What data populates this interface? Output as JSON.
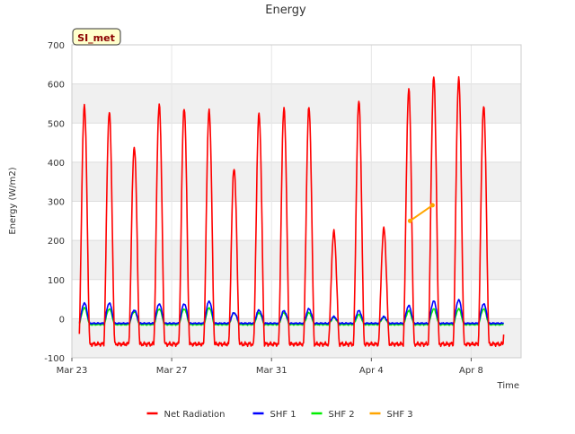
{
  "chart_data": {
    "type": "line",
    "title": "Energy",
    "xlabel": "Time",
    "ylabel": "Energy (W/m2)",
    "ylim": [
      -100,
      700
    ],
    "xlim_days": [
      0,
      18
    ],
    "yticks": [
      -100,
      0,
      100,
      200,
      300,
      400,
      500,
      600,
      700
    ],
    "xticks": [
      {
        "day": 0,
        "label": "Mar 23"
      },
      {
        "day": 4,
        "label": "Mar 27"
      },
      {
        "day": 8,
        "label": "Mar 31"
      },
      {
        "day": 12,
        "label": "Apr 4"
      },
      {
        "day": 16,
        "label": "Apr 8"
      }
    ],
    "grid": true,
    "background_bands": true,
    "site_label": "SI_met",
    "legend_position": "bottom-center",
    "series": [
      {
        "name": "Net Radiation",
        "color": "#ff0000",
        "kind": "diurnal",
        "night": -65,
        "peaks": [
          545,
          530,
          440,
          550,
          540,
          535,
          385,
          525,
          538,
          540,
          222,
          555,
          230,
          585,
          618,
          615,
          545
        ]
      },
      {
        "name": "SHF 1",
        "color": "#0000ff",
        "kind": "diurnal",
        "night": -12,
        "peaks": [
          40,
          40,
          22,
          38,
          38,
          45,
          15,
          22,
          20,
          25,
          5,
          20,
          5,
          33,
          45,
          48,
          38
        ]
      },
      {
        "name": "SHF 2",
        "color": "#00ee00",
        "kind": "diurnal",
        "night": -15,
        "peaks": [
          28,
          25,
          18,
          25,
          25,
          28,
          15,
          15,
          15,
          15,
          3,
          10,
          3,
          20,
          25,
          25,
          25
        ]
      },
      {
        "name": "SHF 3",
        "color": "#ffa500",
        "kind": "points",
        "points": [
          [
            13.55,
            250
          ],
          [
            14.45,
            290
          ]
        ]
      }
    ]
  }
}
